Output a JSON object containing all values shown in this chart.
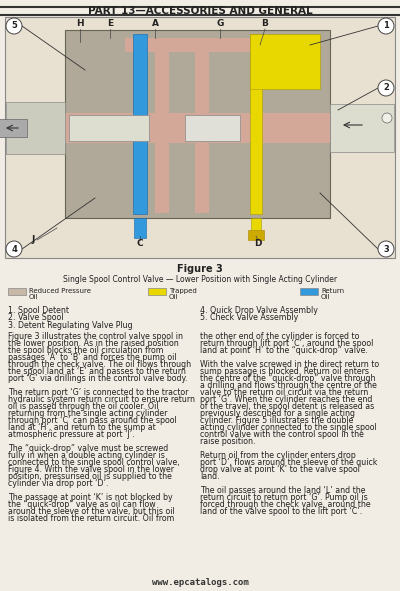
{
  "page_title": "PART 13—ACCESSORIES AND GENERAL",
  "fig_title": "Figure 3",
  "fig_subtitle": "Single Spool Control Valve — Lower Position with Single Acting Cylinder",
  "legend_items": [
    {
      "label": "Reduced Pressure\nOil",
      "color": "#c8b8a8"
    },
    {
      "label": "Trapped\nOil",
      "color": "#e8d800"
    },
    {
      "label": "Return\nOil",
      "color": "#3399dd"
    }
  ],
  "numbered_labels_left": [
    "1. Spool Detent",
    "2. Valve Spool",
    "3. Detent Regulating Valve Plug"
  ],
  "numbered_labels_right": [
    "4. Quick Drop Valve Assembly",
    "5. Check Valve Assembly"
  ],
  "body_text_left": [
    "Figure 3 illustrates the control valve spool in",
    "the lower position. As in the raised position",
    "the spool blocks the oil circulation from",
    "passages ‘A’ to ‘B’ and forces the pump oil",
    "through the check valve. The oil flows through",
    "the spool land at ‘E’ and passes to the return",
    "port ‘G’ via drillings in the control valve body.",
    "",
    "The return port ‘G’ is connected to the tractor",
    "hydraulic system return circuit to ensure return",
    "oil is passed through the oil cooler. Oil",
    "returning from the single acting cylinder",
    "through port ‘C’ can pass around the spool",
    "land at ‘H’, and return to the sump at",
    "atmospheric pressure at port ‘J’.",
    "",
    "The “quick-drop” valve must be screwed",
    "fully in when a double acting cylinder is",
    "connected to the single spool control valve,",
    "Figure 4. With the valve spool in the lower",
    "position, pressurised oil is supplied to the",
    "cylinder via drop port ‘D’.",
    "",
    "The passage at point ‘K’ is not blocked by",
    "the “quick-drop” valve as oil can flow",
    "around the sleeve of the valve, but this oil",
    "is isolated from the return circuit. Oil from"
  ],
  "body_text_right": [
    "the other end of the cylinder is forced to",
    "return through lift port ‘C’, around the spool",
    "land at point ‘H’ to the “quick-drop” valve.",
    "",
    "With the valve screwed in the direct return to",
    "sump passage is blocked. Return oil enters",
    "the centre of the “quick-drop” valve through",
    "a drilling and flows through the centre of the",
    "valve to the return oil circuit via the return",
    "port ‘G’. When the cylinder reaches the end",
    "of the travel, the spool detent is released as",
    "previously described for a single acting",
    "cylinder. Figure 5 illustrates the double",
    "acting cylinder connected to the single spool",
    "control valve with the control spool in the",
    "raise position.",
    "",
    "Return oil from the cylinder enters drop",
    "port ‘D’, flows around the sleeve of the quick",
    "drop valve at point ‘K’ to the valve spool",
    "land.",
    "",
    "The oil passes around the land ‘L’ and the",
    "return circuit to return port ‘G’. Pump oil is",
    "forced through the check valve, around the",
    "land of the valve spool to the lift port ‘C’."
  ],
  "website": "www.epcatalogs.com",
  "bg_color": "#f2ede4",
  "body_font_size": 5.7,
  "header_font_size": 7.5
}
